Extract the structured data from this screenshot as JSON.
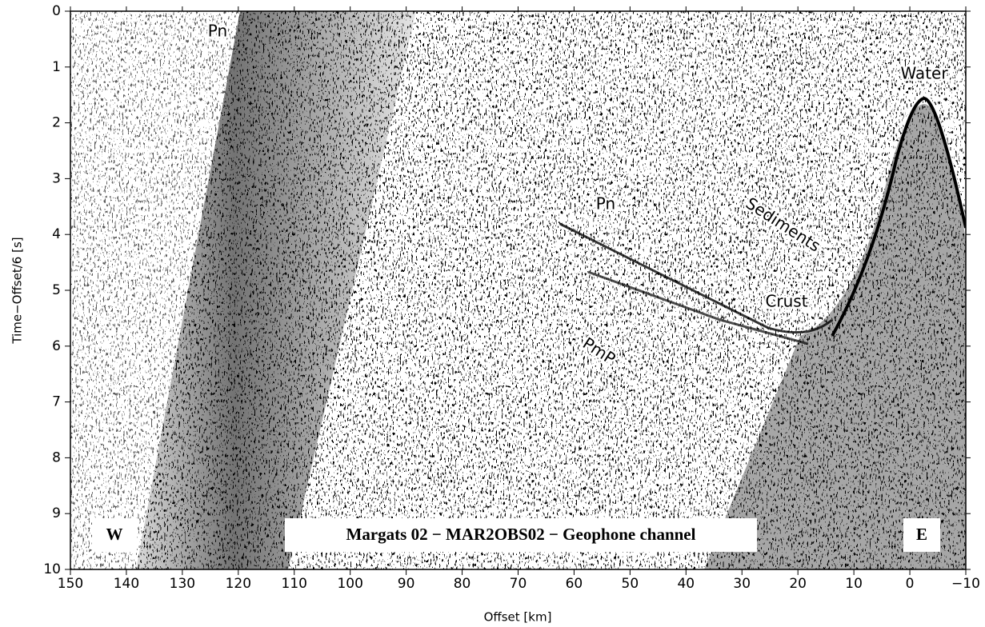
{
  "chart_data": {
    "type": "seismic",
    "title": "Margats 02 − MAR2OBS02 − Geophone channel",
    "x_label": "Offset [km]",
    "y_label": "Time−Offset/6 [s]",
    "xlim": [
      150,
      -10
    ],
    "ylim": [
      10,
      0
    ],
    "xticks": [
      150,
      140,
      130,
      120,
      110,
      100,
      90,
      80,
      70,
      60,
      50,
      40,
      30,
      20,
      10,
      0,
      {
        "value": -10,
        "label": "−10"
      }
    ],
    "yticks": [
      0,
      1,
      2,
      3,
      4,
      5,
      6,
      7,
      8,
      9,
      10
    ],
    "annotations": [
      "Pn",
      "Water",
      "Pn",
      "Sediments",
      "Crust",
      "PmP"
    ],
    "side_labels": [
      "W",
      "E"
    ]
  }
}
